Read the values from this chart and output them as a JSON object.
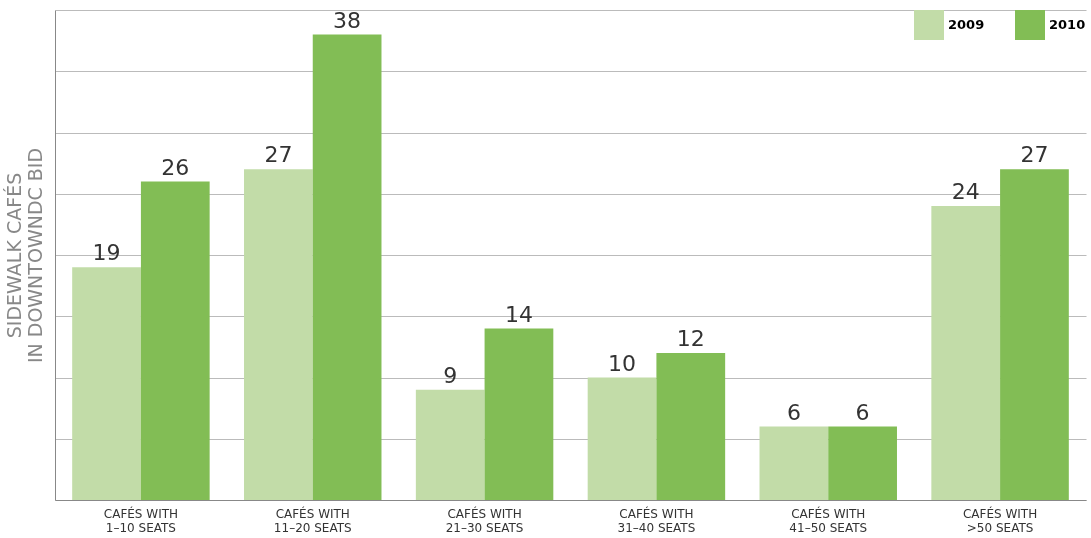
{
  "chart_data": {
    "type": "bar",
    "ylabel": "SIDEWALK CAFÉS\nIN DOWNTOWNDC BID",
    "categories": [
      "CAFÉS WITH\n1–10 SEATS",
      "CAFÉS WITH\n11–20 SEATS",
      "CAFÉS WITH\n21–30 SEATS",
      "CAFÉS WITH\n31–40 SEATS",
      "CAFÉS WITH\n41–50 SEATS",
      "CAFÉS WITH\n>50 SEATS"
    ],
    "series": [
      {
        "name": "2009",
        "color": "#c2dca8",
        "values": [
          19,
          27,
          9,
          10,
          6,
          24
        ]
      },
      {
        "name": "2010",
        "color": "#82bd55",
        "values": [
          26,
          38,
          14,
          12,
          6,
          27
        ]
      }
    ],
    "ylim": [
      0,
      40
    ],
    "yticks": [
      {
        "value": 0,
        "label": null
      },
      {
        "value": 5,
        "label": null
      },
      {
        "value": 10,
        "label": null
      },
      {
        "value": 15,
        "label": null
      },
      {
        "value": 20,
        "label": null
      },
      {
        "value": 25,
        "label": null
      },
      {
        "value": 30,
        "label": null
      },
      {
        "value": 35,
        "label": null
      },
      {
        "value": 40,
        "label": null
      }
    ],
    "tick_labels": "x",
    "grid": "y",
    "legend": "top right",
    "data_labels": true
  }
}
